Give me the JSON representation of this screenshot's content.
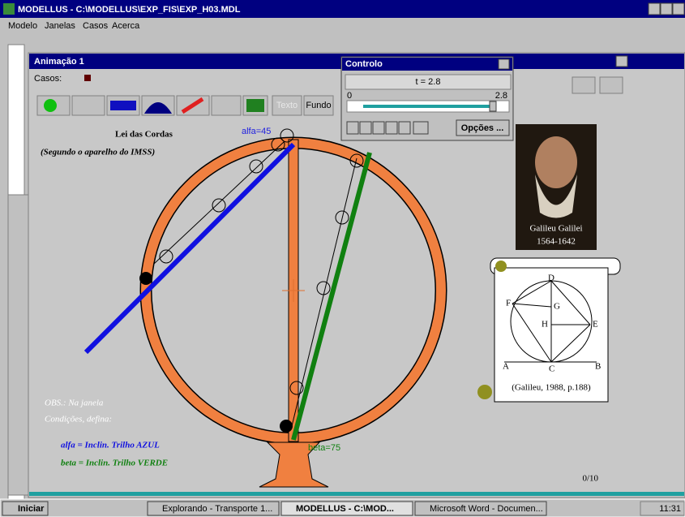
{
  "window": {
    "title": "MODELLUS - C:\\MODELLUS\\EXP_FIS\\EXP_H03.MDL",
    "menu": [
      "Modelo",
      "Janelas",
      "Casos",
      "Acerca"
    ]
  },
  "animation": {
    "title": "Animação 1",
    "cases_label": "Casos:",
    "buttons": [
      "Texto",
      "Fundo"
    ],
    "heading": "Lei das Cordas",
    "subheading": "(Segundo o aparelho do IMSS)",
    "alpha_label": "alfa=45",
    "beta_label": "beta=75",
    "portrait": {
      "name": "Galileu Galilei",
      "years": "1564-1642"
    },
    "figure": {
      "points": [
        "D",
        "F",
        "G",
        "H",
        "E",
        "A",
        "C",
        "B"
      ],
      "caption": "(Galileu, 1988, p.188)"
    },
    "notes": [
      "OBS.: Na janela",
      "Condições, defina:"
    ],
    "definitions": [
      "alfa = Inclin. Trilho AZUL",
      "beta = Inclin. Trilho VERDE"
    ],
    "page": "0/10"
  },
  "control": {
    "title": "Controlo",
    "time": "t = 2.8",
    "slider_min": "0",
    "slider_max": "2.8",
    "options": "Opções ..."
  },
  "taskbar": {
    "start": "Iniciar",
    "tasks": [
      "Explorando - Transporte 1...",
      "MODELLUS - C:\\MOD...",
      "Microsoft Word - Documen..."
    ],
    "clock": "11:31"
  }
}
